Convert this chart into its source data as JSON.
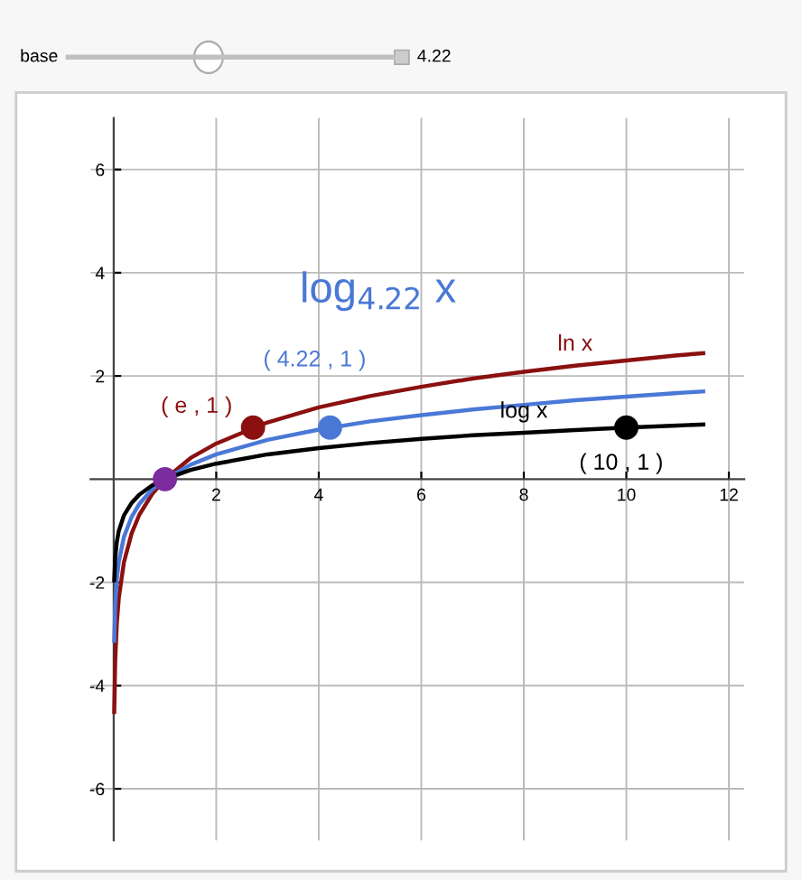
{
  "chart_data": {
    "type": "line",
    "annotations": [
      "base",
      "4.22"
    ],
    "xlim": [
      -0.45,
      12.3
    ],
    "ylim": [
      -7,
      7
    ],
    "xticks": [
      2,
      4,
      6,
      8,
      10,
      12
    ],
    "yticks": [
      -6,
      -4,
      -2,
      2,
      4,
      6
    ],
    "grid": true,
    "marker": "none",
    "line_style": "solid",
    "series": [
      {
        "name": "ln x",
        "color": "#8b1010",
        "x": [
          0.011,
          0.03,
          0.06,
          0.1,
          0.2,
          0.35,
          0.5,
          0.75,
          1,
          1.5,
          2,
          3,
          4,
          5,
          6,
          7,
          8,
          9,
          10,
          11,
          11.5
        ],
        "values": [
          -4.51,
          -3.51,
          -2.81,
          -2.3,
          -1.61,
          -1.05,
          -0.69,
          -0.29,
          0,
          0.41,
          0.69,
          1.1,
          1.39,
          1.61,
          1.79,
          1.95,
          2.08,
          2.2,
          2.3,
          2.4,
          2.44
        ]
      },
      {
        "name": "log$_{4.22}$ x",
        "color": "#4a78d6",
        "x": [
          0.011,
          0.03,
          0.06,
          0.1,
          0.2,
          0.35,
          0.5,
          0.75,
          1,
          1.5,
          2,
          3,
          4,
          5,
          6,
          7,
          8,
          9,
          10,
          11,
          11.5
        ],
        "values": [
          -3.13,
          -2.44,
          -1.95,
          -1.6,
          -1.12,
          -0.73,
          -0.48,
          -0.2,
          0,
          0.28,
          0.48,
          0.76,
          0.96,
          1.12,
          1.24,
          1.35,
          1.44,
          1.53,
          1.6,
          1.67,
          1.7
        ]
      },
      {
        "name": "log x",
        "color": "#000000",
        "x": [
          0.011,
          0.03,
          0.06,
          0.1,
          0.2,
          0.35,
          0.5,
          0.75,
          1,
          1.5,
          2,
          3,
          4,
          5,
          6,
          7,
          8,
          9,
          10,
          11,
          11.5
        ],
        "values": [
          -1.96,
          -1.52,
          -1.22,
          -1.0,
          -0.7,
          -0.46,
          -0.3,
          -0.12,
          0,
          0.18,
          0.3,
          0.48,
          0.6,
          0.7,
          0.78,
          0.85,
          0.9,
          0.95,
          1.0,
          1.04,
          1.06
        ]
      },
      {
        "type": "scatter",
        "marker": "circle",
        "color": "#8b1010",
        "x": [
          2.718
        ],
        "values": [
          1
        ],
        "value_labels": [
          "( e , 1 )"
        ]
      },
      {
        "type": "scatter",
        "marker": "circle",
        "color": "#4a78d6",
        "x": [
          4.22
        ],
        "values": [
          1
        ],
        "value_labels": [
          "( 4.22 , 1 )"
        ]
      },
      {
        "type": "scatter",
        "marker": "circle",
        "color": "#000000",
        "x": [
          10
        ],
        "values": [
          1
        ],
        "value_labels": [
          "( 10 , 1 )"
        ]
      },
      {
        "type": "scatter",
        "marker": "circle",
        "color": "#7b2c9e",
        "x": [
          1
        ],
        "values": [
          0
        ]
      }
    ]
  }
}
